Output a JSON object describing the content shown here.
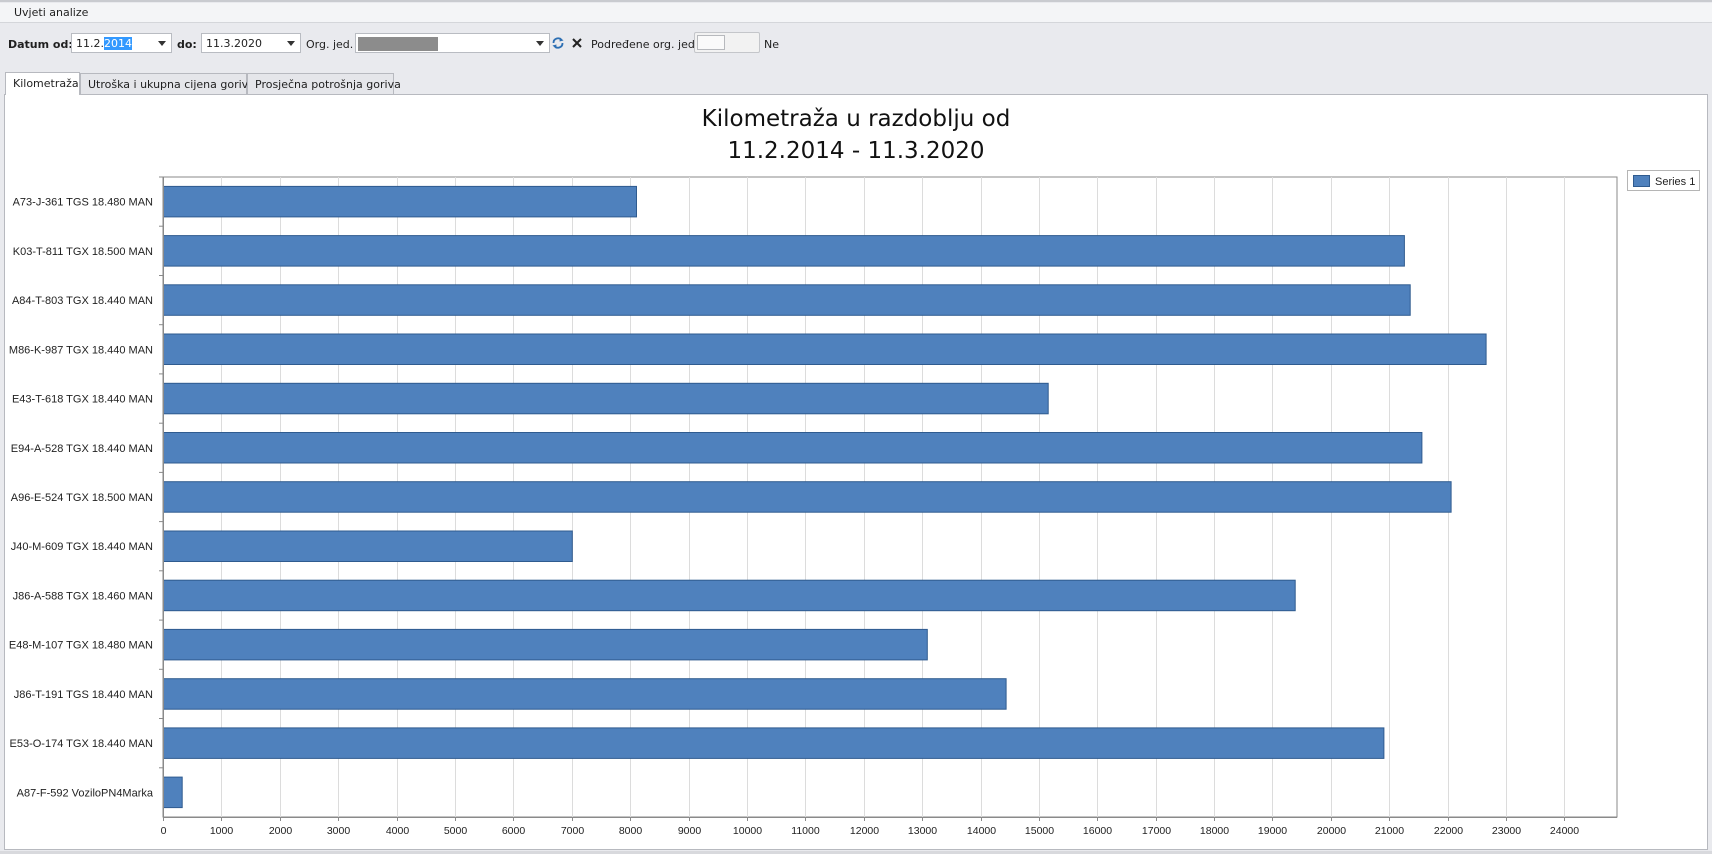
{
  "group_header": {
    "title": "Uvjeti analize"
  },
  "filters": {
    "date_from_label": "Datum od:",
    "date_from_value_prefix": "11.2.",
    "date_from_value_selected": "2014",
    "date_to_label": "do:",
    "date_to_value": "11.3.2020",
    "org_label": "Org. jed.",
    "sub_org_label": "Podređene org. jed.",
    "toggle_state_label": "Ne"
  },
  "tabs": [
    {
      "label": "Kilometraža",
      "active": true
    },
    {
      "label": "Utroška i ukupna cijena goriva",
      "active": false
    },
    {
      "label": "Prosječna potrošnja goriva",
      "active": false
    }
  ],
  "colors": {
    "bar_fill": "#4f81bd",
    "bar_stroke": "#2f5b8f",
    "grid": "#dcdcdc",
    "axis": "#8a8a8a"
  },
  "chart_data": {
    "type": "bar",
    "orientation": "horizontal",
    "title_lines": [
      "Kilometraža u razdoblju od",
      "11.2.2014 - 11.3.2020"
    ],
    "categories": [
      "A73-J-361 TGS 18.480 MAN",
      "K03-T-811 TGX 18.500 MAN",
      "A84-T-803 TGX 18.440 MAN",
      "M86-K-987 TGX 18.440 MAN",
      "E43-T-618 TGX 18.440 MAN",
      "E94-A-528 TGX 18.440 MAN",
      "A96-E-524 TGX 18.500 MAN",
      "J40-M-609 TGX 18.440 MAN",
      "J86-A-588 TGX 18.460 MAN",
      "E48-M-107 TGX 18.480 MAN",
      "J86-T-191 TGS 18.440 MAN",
      "E53-O-174 TGX 18.440 MAN",
      "A87-F-592 VoziloPN4Marka"
    ],
    "series": [
      {
        "name": "Series 1",
        "values": [
          8100,
          21250,
          21350,
          22650,
          15150,
          21550,
          22050,
          7000,
          19380,
          13080,
          14430,
          20900,
          320
        ]
      }
    ],
    "x_ticks": [
      0,
      1000,
      2000,
      3000,
      4000,
      5000,
      6000,
      7000,
      8000,
      9000,
      10000,
      11000,
      12000,
      13000,
      14000,
      15000,
      16000,
      17000,
      18000,
      19000,
      20000,
      21000,
      22000,
      23000,
      24000
    ],
    "xlim": [
      0,
      24900
    ],
    "grid": true,
    "legend_position": "top-right"
  }
}
